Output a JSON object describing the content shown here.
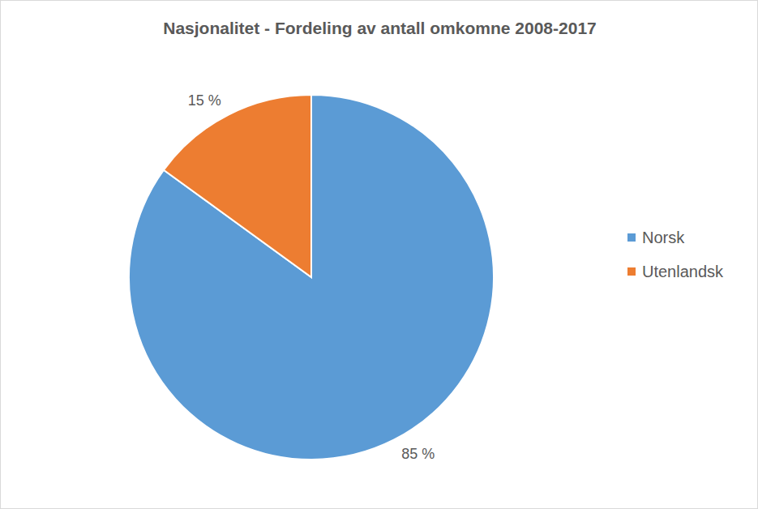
{
  "chart_data": {
    "type": "pie",
    "title": "Nasjonalitet - Fordeling av antall omkomne 2008-2017",
    "categories": [
      "Norsk",
      "Utenlandsk"
    ],
    "values": [
      85,
      15
    ],
    "value_labels": [
      "85 %",
      "15 %"
    ],
    "colors": [
      "#5b9bd5",
      "#ed7d31"
    ],
    "data_labels": true,
    "legend": "right"
  }
}
